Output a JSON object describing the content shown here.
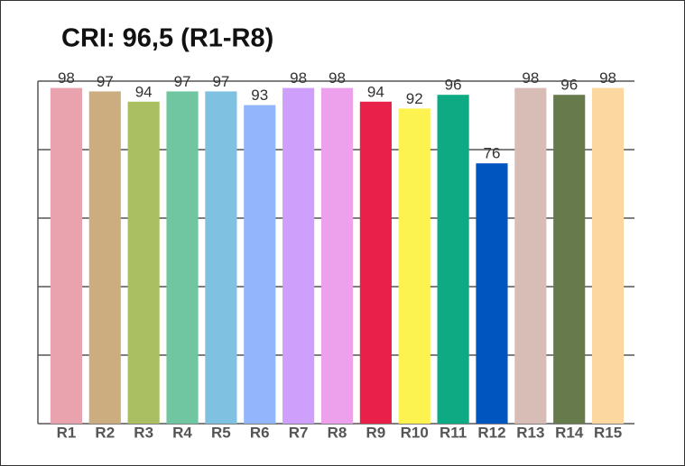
{
  "chart_data": {
    "type": "bar",
    "title": "CRI: 96,5 (R1-R8)",
    "categories": [
      "R1",
      "R2",
      "R3",
      "R4",
      "R5",
      "R6",
      "R7",
      "R8",
      "R9",
      "R10",
      "R11",
      "R12",
      "R13",
      "R14",
      "R15"
    ],
    "values": [
      98,
      97,
      94,
      97,
      97,
      93,
      98,
      98,
      94,
      92,
      96,
      76,
      98,
      96,
      98
    ],
    "colors": [
      "#e8a3ae",
      "#cbad80",
      "#a9bf62",
      "#6fc6a0",
      "#7fc1e0",
      "#92b5fb",
      "#cfa0fb",
      "#eda0ec",
      "#e8204a",
      "#fdf350",
      "#0daa84",
      "#0055be",
      "#d7bdb6",
      "#677a4c",
      "#fdd7a0"
    ],
    "ylim": [
      0,
      100
    ],
    "yticks": [
      0,
      20,
      40,
      60,
      80,
      100
    ],
    "grid": true
  }
}
